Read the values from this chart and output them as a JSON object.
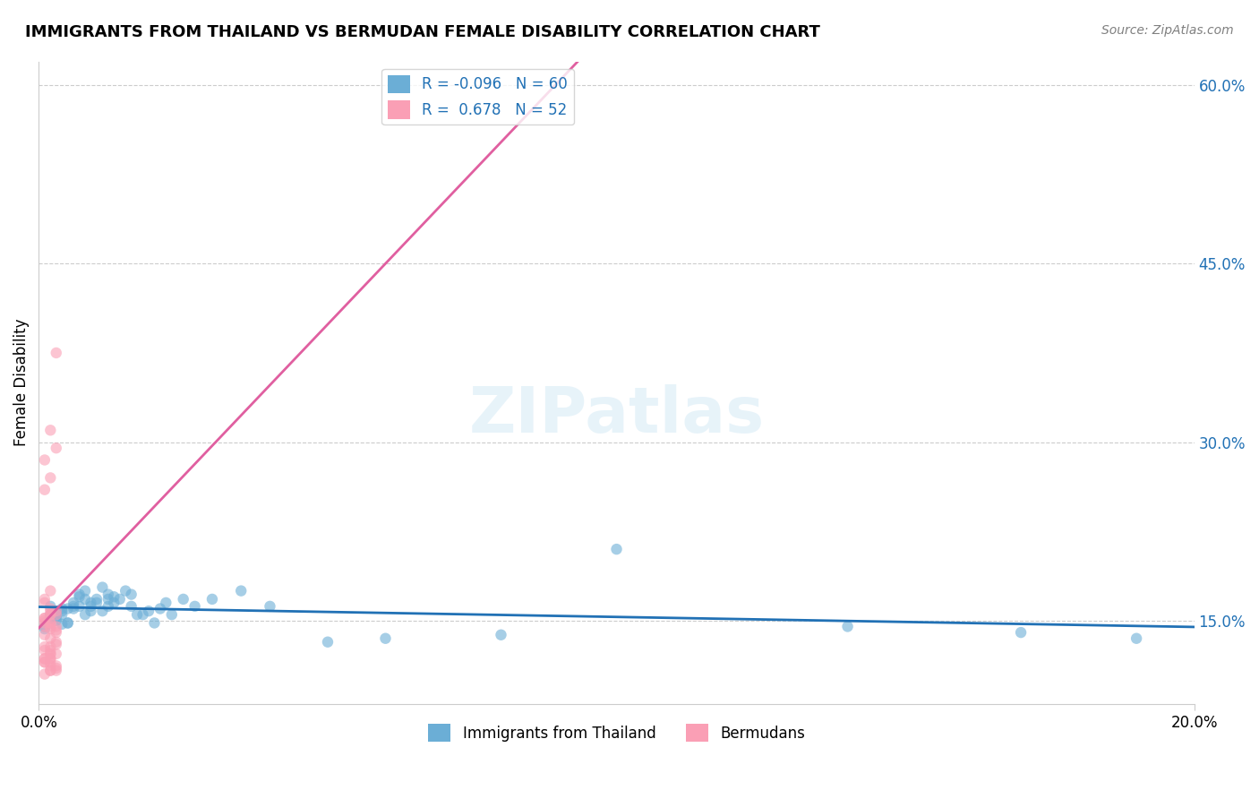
{
  "title": "IMMIGRANTS FROM THAILAND VS BERMUDAN FEMALE DISABILITY CORRELATION CHART",
  "source": "Source: ZipAtlas.com",
  "xlabel_bottom": "",
  "ylabel": "Female Disability",
  "legend_labels": [
    "Immigrants from Thailand",
    "Bermudans"
  ],
  "r_blue": -0.096,
  "n_blue": 60,
  "r_pink": 0.678,
  "n_pink": 52,
  "x_min": 0.0,
  "x_max": 0.2,
  "y_min": 0.08,
  "y_max": 0.62,
  "y_ticks": [
    0.15,
    0.3,
    0.45,
    0.6
  ],
  "y_tick_labels": [
    "15.0%",
    "30.0%",
    "45.0%",
    "60.0%"
  ],
  "x_ticks": [
    0.0,
    0.2
  ],
  "x_tick_labels": [
    "0.0%",
    "20.0%"
  ],
  "blue_color": "#6baed6",
  "pink_color": "#fa9fb5",
  "blue_line_color": "#2171b5",
  "pink_line_color": "#e05fa0",
  "watermark": "ZIPatlas",
  "blue_scatter_x": [
    0.002,
    0.003,
    0.001,
    0.004,
    0.005,
    0.002,
    0.003,
    0.001,
    0.002,
    0.004,
    0.006,
    0.003,
    0.005,
    0.007,
    0.004,
    0.006,
    0.008,
    0.003,
    0.005,
    0.004,
    0.007,
    0.009,
    0.006,
    0.008,
    0.01,
    0.007,
    0.009,
    0.012,
    0.01,
    0.008,
    0.011,
    0.013,
    0.009,
    0.012,
    0.015,
    0.011,
    0.013,
    0.016,
    0.014,
    0.012,
    0.018,
    0.02,
    0.016,
    0.019,
    0.022,
    0.017,
    0.021,
    0.025,
    0.023,
    0.027,
    0.03,
    0.035,
    0.04,
    0.05,
    0.06,
    0.08,
    0.1,
    0.14,
    0.17,
    0.19
  ],
  "blue_scatter_y": [
    0.155,
    0.15,
    0.145,
    0.16,
    0.148,
    0.152,
    0.158,
    0.143,
    0.162,
    0.147,
    0.165,
    0.155,
    0.16,
    0.17,
    0.158,
    0.162,
    0.168,
    0.153,
    0.148,
    0.155,
    0.172,
    0.165,
    0.16,
    0.175,
    0.168,
    0.162,
    0.158,
    0.172,
    0.165,
    0.155,
    0.178,
    0.17,
    0.162,
    0.168,
    0.175,
    0.158,
    0.165,
    0.172,
    0.168,
    0.162,
    0.155,
    0.148,
    0.162,
    0.158,
    0.165,
    0.155,
    0.16,
    0.168,
    0.155,
    0.162,
    0.168,
    0.175,
    0.162,
    0.132,
    0.135,
    0.138,
    0.21,
    0.145,
    0.14,
    0.135
  ],
  "pink_scatter_x": [
    0.001,
    0.002,
    0.001,
    0.003,
    0.002,
    0.001,
    0.003,
    0.002,
    0.001,
    0.002,
    0.003,
    0.001,
    0.002,
    0.003,
    0.001,
    0.002,
    0.001,
    0.003,
    0.002,
    0.001,
    0.002,
    0.003,
    0.001,
    0.002,
    0.003,
    0.001,
    0.002,
    0.001,
    0.002,
    0.003,
    0.002,
    0.001,
    0.003,
    0.002,
    0.001,
    0.002,
    0.001,
    0.002,
    0.003,
    0.002,
    0.001,
    0.002,
    0.003,
    0.002,
    0.001,
    0.002,
    0.003,
    0.002,
    0.001,
    0.002,
    0.003,
    0.002
  ],
  "pink_scatter_y": [
    0.15,
    0.155,
    0.148,
    0.145,
    0.16,
    0.152,
    0.142,
    0.158,
    0.165,
    0.143,
    0.14,
    0.168,
    0.175,
    0.155,
    0.26,
    0.27,
    0.285,
    0.295,
    0.31,
    0.138,
    0.135,
    0.13,
    0.128,
    0.125,
    0.122,
    0.145,
    0.148,
    0.152,
    0.155,
    0.158,
    0.118,
    0.115,
    0.112,
    0.108,
    0.118,
    0.122,
    0.125,
    0.128,
    0.132,
    0.118,
    0.115,
    0.112,
    0.108,
    0.115,
    0.118,
    0.122,
    0.11,
    0.108,
    0.105,
    0.145,
    0.375,
    0.148
  ]
}
